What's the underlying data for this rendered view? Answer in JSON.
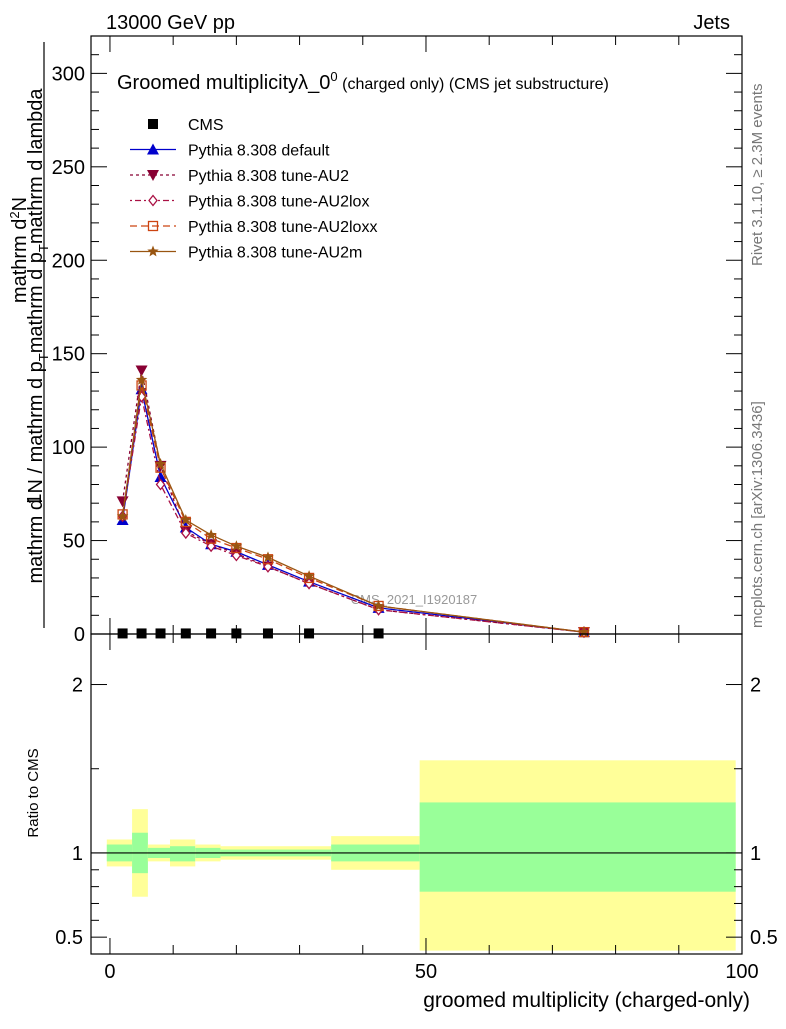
{
  "header": {
    "left": "13000 GeV pp",
    "right": "Jets"
  },
  "side_labels": {
    "rivet": "Rivet 3.1.10, ≥ 2.3M events",
    "mcplots": "mcplots.cern.ch [arXiv:1306.3436]"
  },
  "chart_data": [
    {
      "type": "line",
      "title": {
        "main": "Groomed multiplicityλ_0",
        "sup": "0",
        "paren1": "(charged only)",
        "paren2": "(CMS jet substructure)"
      },
      "watermark": "CMS_2021_I1920187",
      "ylabel": {
        "numerator_top": "1",
        "numerator_main": "mathrm d",
        "numerator_sup": "2",
        "numerator_end": "N",
        "denominator_1": "mathrm d N / mathrm d p",
        "denominator_sub": "T",
        "denominator_2": "mathrm d p",
        "denominator_sub2": "T",
        "denominator_3": "mathrm d lambda"
      },
      "xlim": [
        -3,
        100
      ],
      "ylim": [
        0,
        320
      ],
      "yticks": [
        0,
        50,
        100,
        150,
        200,
        250,
        300
      ],
      "x": [
        2,
        5,
        8,
        12,
        16,
        20,
        25,
        31.5,
        42.5,
        75
      ],
      "series": [
        {
          "name": "CMS",
          "marker": "square",
          "color": "#000000",
          "dash": "",
          "values": [
            0.3,
            0.3,
            0.3,
            0.3,
            0.3,
            0.3,
            0.3,
            0.3,
            0.3,
            null
          ]
        },
        {
          "name": "Pythia 8.308 default",
          "marker": "triangle-up",
          "color": "#0000cc",
          "dash": "",
          "values": [
            61,
            131,
            84,
            57,
            48,
            44,
            37,
            28,
            14,
            1
          ]
        },
        {
          "name": "Pythia 8.308 tune-AU2",
          "marker": "triangle-down",
          "color": "#880033",
          "dash": "3,3",
          "values": [
            71,
            141,
            90,
            55,
            48,
            43,
            36,
            27,
            13,
            1
          ]
        },
        {
          "name": "Pythia 8.308 tune-AU2lox",
          "marker": "diamond",
          "color": "#aa1144",
          "dash": "2,3,6,3",
          "values": [
            63,
            127,
            80,
            54,
            47,
            42,
            36,
            27,
            13,
            1
          ]
        },
        {
          "name": "Pythia 8.308 tune-AU2loxx",
          "marker": "square-open",
          "color": "#cc4411",
          "dash": "7,4",
          "values": [
            64,
            133,
            89,
            60,
            51,
            46,
            40,
            30,
            15,
            1
          ]
        },
        {
          "name": "Pythia 8.308 tune-AU2m",
          "marker": "star",
          "color": "#995511",
          "dash": "",
          "values": [
            63,
            136,
            91,
            61,
            53,
            47,
            41,
            31,
            15,
            1
          ]
        }
      ]
    },
    {
      "type": "area",
      "ylabel": "Ratio to CMS",
      "xlabel": "groomed multiplicity (charged-only)",
      "xlim": [
        -3,
        100
      ],
      "ylim": [
        0.4,
        2.3
      ],
      "yticks": [
        0.5,
        1,
        2
      ],
      "ytick_labels": [
        "0.5",
        "1",
        "2"
      ],
      "xticks": [
        0,
        50,
        100
      ],
      "reference": 1,
      "bins": [
        {
          "x0": -0.5,
          "x1": 3.5,
          "inner": [
            0.95,
            1.05
          ],
          "outer": [
            0.92,
            1.08
          ]
        },
        {
          "x0": 3.5,
          "x1": 6,
          "inner": [
            0.88,
            1.12
          ],
          "outer": [
            0.74,
            1.26
          ]
        },
        {
          "x0": 6,
          "x1": 9.5,
          "inner": [
            0.97,
            1.03
          ],
          "outer": [
            0.95,
            1.05
          ]
        },
        {
          "x0": 9.5,
          "x1": 13.5,
          "inner": [
            0.95,
            1.04
          ],
          "outer": [
            0.92,
            1.08
          ]
        },
        {
          "x0": 13.5,
          "x1": 17.5,
          "inner": [
            0.97,
            1.03
          ],
          "outer": [
            0.95,
            1.05
          ]
        },
        {
          "x0": 17.5,
          "x1": 35,
          "inner": [
            0.98,
            1.02
          ],
          "outer": [
            0.96,
            1.04
          ]
        },
        {
          "x0": 35,
          "x1": 49,
          "inner": [
            0.95,
            1.05
          ],
          "outer": [
            0.9,
            1.1
          ]
        },
        {
          "x0": 49,
          "x1": 99,
          "inner": [
            0.77,
            1.3
          ],
          "outer": [
            0.42,
            1.55
          ]
        }
      ],
      "band_colors": {
        "inner": "#99ff99",
        "outer": "#ffff99"
      }
    }
  ]
}
